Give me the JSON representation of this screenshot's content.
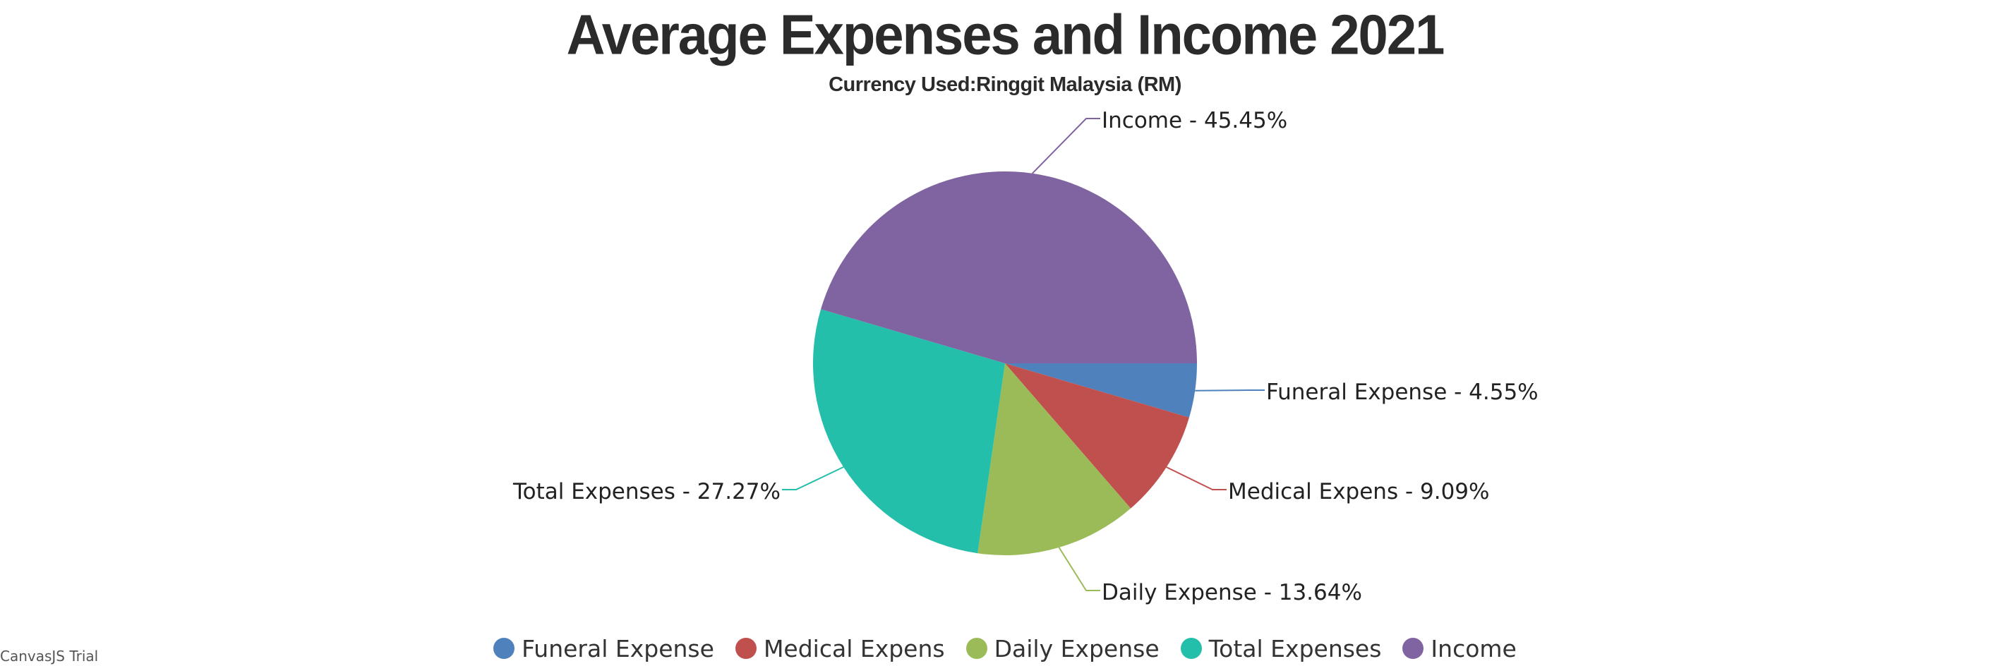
{
  "chart_data": {
    "type": "pie",
    "title": "Average Expenses and Income 2021",
    "subtitle": "Currency Used:Ringgit Malaysia (RM)",
    "slices": [
      {
        "label": "Funeral Expense",
        "value": 4.55,
        "display": "Funeral Expense - 4.55%",
        "color": "#4f81bc"
      },
      {
        "label": "Medical Expens",
        "value": 9.09,
        "display": "Medical Expens - 9.09%",
        "color": "#c0504e"
      },
      {
        "label": "Daily Expense",
        "value": 13.64,
        "display": "Daily Expense - 13.64%",
        "color": "#9bbb58"
      },
      {
        "label": "Total Expenses",
        "value": 27.27,
        "display": "Total Expenses - 27.27%",
        "color": "#23bfaa"
      },
      {
        "label": "Income",
        "value": 45.45,
        "display": "Income - 45.45%",
        "color": "#8064a1"
      }
    ],
    "legend_position": "bottom"
  },
  "watermark": "CanvasJS Trial"
}
